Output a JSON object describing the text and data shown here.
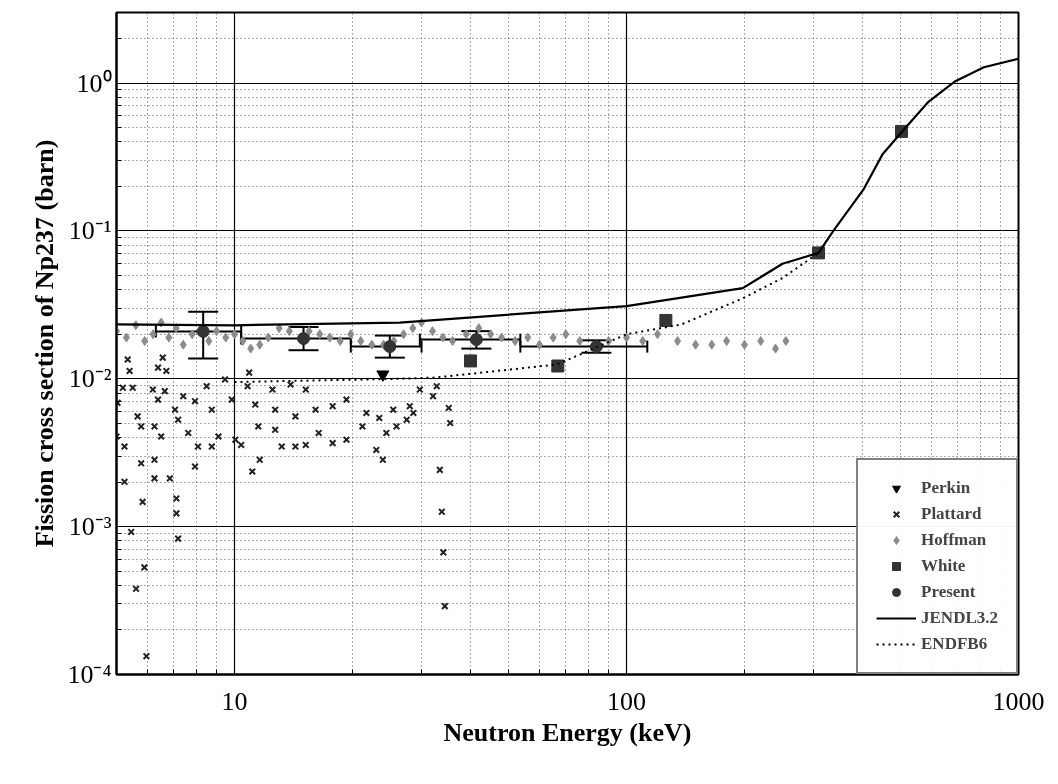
{
  "chart_data": {
    "type": "scatter",
    "xlabel": "Neutron Energy (keV)",
    "ylabel": "Fission cross section of Np237 (barn)",
    "log": "xy",
    "grid": true,
    "legend": "bottom right",
    "xlim": [
      5,
      1000
    ],
    "xticks": [
      10,
      100,
      1000
    ],
    "ylim": [
      0.0001,
      3
    ],
    "yticks": [
      {
        "value": 0.0001,
        "label": "10⁻⁴"
      },
      {
        "value": 0.001,
        "label": "10⁻³"
      },
      {
        "value": 0.01,
        "label": "10⁻²"
      },
      {
        "value": 0.1,
        "label": "10⁻¹"
      },
      {
        "value": 1,
        "label": "10⁰"
      }
    ],
    "series": [
      {
        "name": "Perkin",
        "marker": "triangle",
        "color": "#000000",
        "x": [
          23.9
        ],
        "values": [
          0.0107
        ]
      },
      {
        "name": "Plattard",
        "marker": "cross",
        "color": "#222222",
        "x": [
          5.34,
          6.56,
          5.4,
          6.38,
          6.7,
          5.19,
          5.5,
          6.19,
          6.64,
          7.4,
          8.49,
          9.46,
          10.9,
          10.8,
          12.5,
          13.9,
          15.2,
          5.03,
          5.66,
          6.38,
          7.05,
          7.93,
          8.75,
          9.84,
          11.3,
          12.7,
          14.3,
          16.1,
          17.8,
          19.3,
          21.7,
          23.4,
          25.4,
          28.0,
          29.7,
          32.1,
          32.8,
          5.0,
          5.24,
          5.78,
          6.25,
          6.5,
          7.18,
          7.62,
          8.07,
          9.1,
          10.05,
          10.4,
          11.5,
          12.7,
          13.2,
          14.3,
          15.2,
          16.4,
          17.8,
          19.3,
          21.2,
          23.0,
          24.4,
          25.9,
          27.5,
          28.6,
          35.2,
          35.5,
          5.78,
          6.25,
          7.93,
          8.75,
          11.6,
          11.1,
          23.9,
          33.4,
          5.24,
          6.25,
          6.84,
          5.83,
          7.11,
          7.11,
          33.8,
          5.45,
          7.18,
          34.1,
          5.89,
          5.61,
          34.4,
          5.96
        ],
        "values": [
          0.0135,
          0.0139,
          0.0113,
          0.0119,
          0.0113,
          0.00869,
          0.00869,
          0.00846,
          0.00825,
          0.00762,
          0.00891,
          0.00989,
          0.011,
          0.00891,
          0.00846,
          0.00914,
          0.00846,
          0.00687,
          0.00557,
          0.00723,
          0.00618,
          0.00705,
          0.00618,
          0.00723,
          0.00669,
          0.00618,
          0.00557,
          0.00618,
          0.00652,
          0.00723,
          0.00587,
          0.00543,
          0.00618,
          0.00652,
          0.00846,
          0.00762,
          0.00891,
          0.00407,
          0.00348,
          0.00476,
          0.00476,
          0.00407,
          0.00529,
          0.0043,
          0.00348,
          0.00407,
          0.00387,
          0.00357,
          0.00476,
          0.00452,
          0.00348,
          0.00348,
          0.00357,
          0.0043,
          0.00367,
          0.00387,
          0.00476,
          0.0033,
          0.0043,
          0.00476,
          0.00529,
          0.00587,
          0.00635,
          0.00502,
          0.00268,
          0.00283,
          0.00255,
          0.00348,
          0.00283,
          0.00236,
          0.00283,
          0.00242,
          0.00201,
          0.00212,
          0.00212,
          0.00147,
          0.00155,
          0.00123,
          0.00126,
          0.00092,
          0.00083,
          0.00067,
          0.00053,
          0.00038,
          0.00029,
          0.000133
        ]
      },
      {
        "name": "Hoffman",
        "marker": "diamond",
        "color": "#8c8c8c",
        "x": [
          5.0,
          5.3,
          5.6,
          5.9,
          6.2,
          6.5,
          6.8,
          7.1,
          7.4,
          7.8,
          8.2,
          8.6,
          9.0,
          9.5,
          10,
          10.5,
          11,
          11.6,
          12.2,
          13,
          13.8,
          14.6,
          15.5,
          16.5,
          17.5,
          18.6,
          19.8,
          21,
          22.4,
          24,
          25.5,
          27,
          28.5,
          30,
          32,
          34,
          36,
          39,
          42,
          45,
          48,
          52,
          56,
          60,
          65,
          70,
          76,
          82,
          90,
          100,
          110,
          120,
          135,
          150,
          165,
          180,
          200,
          220,
          240,
          255
        ],
        "values": [
          0.021,
          0.019,
          0.023,
          0.018,
          0.02,
          0.024,
          0.019,
          0.022,
          0.017,
          0.02,
          null,
          0.018,
          0.021,
          0.019,
          0.02,
          0.018,
          0.016,
          0.017,
          0.019,
          0.022,
          0.021,
          null,
          0.021,
          0.02,
          0.019,
          0.018,
          0.02,
          0.018,
          0.017,
          0.017,
          0.018,
          0.02,
          0.022,
          0.024,
          0.021,
          0.019,
          0.018,
          0.02,
          0.022,
          0.02,
          0.019,
          0.018,
          0.019,
          0.017,
          0.019,
          0.02,
          0.018,
          null,
          0.018,
          0.019,
          0.018,
          0.02,
          0.018,
          0.017,
          0.017,
          0.018,
          0.017,
          0.018,
          0.016,
          0.018
        ]
      },
      {
        "name": "White",
        "marker": "square",
        "color": "#333333",
        "x": [
          40.0,
          66.8,
          126,
          309,
          503
        ],
        "values": [
          0.0132,
          0.0122,
          0.0248,
          0.071,
          0.471
        ]
      },
      {
        "name": "Present",
        "marker": "circle",
        "color": "#333333",
        "x": [
          8.32,
          15.0,
          24.9,
          41.4,
          83.8
        ],
        "values": [
          0.0209,
          0.0187,
          0.0165,
          0.0184,
          0.0165
        ],
        "errors": [
          [
            0.0137,
            0.0284
          ],
          [
            0.0156,
            0.0224
          ],
          [
            0.0139,
            0.0196
          ],
          [
            0.016,
            0.021
          ],
          [
            0.015,
            0.0182
          ]
        ],
        "xerrors": [
          [
            6.3,
            10.4
          ],
          [
            10.4,
            19.8
          ],
          [
            19.8,
            30.0
          ],
          [
            29.7,
            53.6
          ],
          [
            53.6,
            113
          ]
        ]
      },
      {
        "name": "JENDL3.2",
        "type": "line",
        "marker": "none",
        "line_style": "solid",
        "color": "#000000",
        "x": [
          5,
          10,
          26.4,
          100,
          198,
          250,
          309,
          337,
          402,
          450,
          505,
          590,
          690,
          816,
          1000
        ],
        "values": [
          0.0233,
          0.023,
          0.024,
          0.031,
          0.041,
          0.06,
          0.071,
          0.1,
          0.19,
          0.33,
          0.47,
          0.75,
          1.03,
          1.28,
          1.46
        ]
      },
      {
        "name": "ENDFB6",
        "type": "line",
        "marker": "none",
        "line_style": "dotted",
        "color": "#000000",
        "x": [
          10,
          26.4,
          32.7,
          66.5,
          100,
          138,
          198,
          250,
          309
        ],
        "values": [
          0.0095,
          0.01,
          0.0102,
          0.0125,
          0.02,
          0.0233,
          0.035,
          0.048,
          0.071
        ]
      }
    ]
  }
}
